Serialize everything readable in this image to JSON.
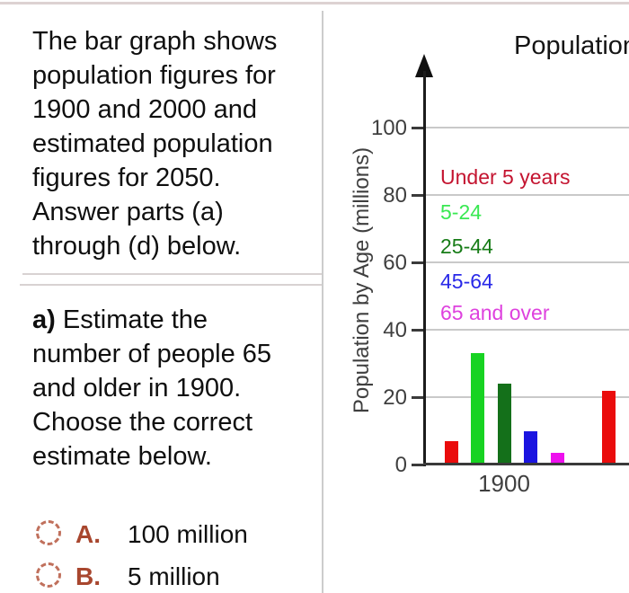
{
  "problem": {
    "intro_lines": [
      "The bar graph shows",
      "population figures for",
      "1900 and 2000 and",
      "estimated population",
      "figures for 2050.",
      "Answer parts (a)",
      "through (d) below."
    ],
    "part_a": {
      "bold_label": "a)",
      "lines": [
        "Estimate the",
        "number of people 65",
        "and older in 1900.",
        "Choose the correct",
        "estimate below."
      ]
    },
    "options": [
      {
        "letter": "A.",
        "text": "100 million"
      },
      {
        "letter": "B.",
        "text": "5 million"
      }
    ]
  },
  "chart_data": {
    "type": "bar",
    "title": "Population",
    "ylabel": "Population by Age (millions)",
    "ylim": [
      0,
      110
    ],
    "yticks": [
      0,
      20,
      40,
      60,
      80,
      100
    ],
    "grid": true,
    "legend_position": "inside-top-left",
    "categories": [
      "1900",
      ""
    ],
    "series": [
      {
        "name": "Under 5 years",
        "color": "#ea0c0c",
        "legend_color": "#c41430",
        "values": [
          7,
          22
        ]
      },
      {
        "name": "5-24",
        "color": "#17d322",
        "legend_color": "#39e852",
        "values": [
          33,
          null
        ]
      },
      {
        "name": "25-44",
        "color": "#14701a",
        "legend_color": "#177c17",
        "values": [
          24,
          null
        ]
      },
      {
        "name": "45-64",
        "color": "#1a14e0",
        "legend_color": "#2929e8",
        "values": [
          10,
          null
        ]
      },
      {
        "name": "65 and over",
        "color": "#ee10ee",
        "legend_color": "#de41de",
        "values": [
          3.5,
          null
        ]
      }
    ],
    "notes": "Second category group (year 2000) and chart title are clipped by the right edge of the screenshot; only the first (red) bar of the second group is visible."
  }
}
